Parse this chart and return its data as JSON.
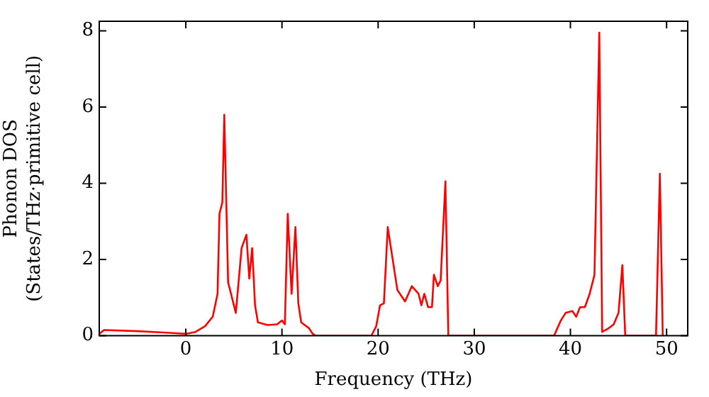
{
  "chart_data": {
    "type": "line",
    "xlabel": "Frequency (THz)",
    "ylabel": "Phonon DOS\n(States/THz·primitive cell)",
    "x": [
      -9,
      -8.5,
      -5,
      -2,
      0,
      1,
      2,
      2.8,
      3.3,
      3.5,
      3.8,
      4.0,
      4.4,
      5.2,
      5.8,
      6.3,
      6.6,
      6.9,
      7.2,
      7.5,
      8.5,
      9.5,
      10,
      10.3,
      10.6,
      11.0,
      11.4,
      11.7,
      12.0,
      12.8,
      13.2,
      13.5,
      19.3,
      19.8,
      20.2,
      20.6,
      21.0,
      22.0,
      22.8,
      23.5,
      24.2,
      24.5,
      24.8,
      25.2,
      25.6,
      25.8,
      26.2,
      26.5,
      27.0,
      27.3,
      38.3,
      39.0,
      39.5,
      40.2,
      40.6,
      41.0,
      41.5,
      42.0,
      42.5,
      43.0,
      43.3,
      44.0,
      44.5,
      45.0,
      45.4,
      45.7,
      48.9,
      49.3,
      49.6
    ],
    "series": [
      {
        "color": "#ff0000",
        "values": [
          0.05,
          0.15,
          0.12,
          0.08,
          0.05,
          0.1,
          0.25,
          0.5,
          1.1,
          3.2,
          3.5,
          5.8,
          1.4,
          0.6,
          2.3,
          2.65,
          1.5,
          2.3,
          0.8,
          0.35,
          0.28,
          0.3,
          0.4,
          0.3,
          3.2,
          1.1,
          2.85,
          0.85,
          0.35,
          0.2,
          0.05,
          0,
          0,
          0.25,
          0.8,
          0.85,
          2.85,
          1.2,
          0.9,
          1.3,
          1.1,
          0.8,
          1.1,
          0.75,
          0.75,
          1.6,
          1.3,
          1.45,
          4.05,
          0,
          0,
          0.4,
          0.6,
          0.65,
          0.5,
          0.75,
          0.75,
          1.1,
          1.6,
          7.95,
          0.1,
          0.2,
          0.3,
          0.6,
          1.85,
          0,
          0,
          4.25,
          0
        ]
      }
    ],
    "xlim": [
      -9,
      52.2
    ],
    "xticks": [
      0,
      10,
      20,
      30,
      40,
      50
    ],
    "ylim": [
      0,
      8.25
    ],
    "yticks": [
      0,
      2,
      4,
      6,
      8
    ],
    "grid": false,
    "legend": false,
    "marker": "none",
    "line_style": "solid"
  }
}
